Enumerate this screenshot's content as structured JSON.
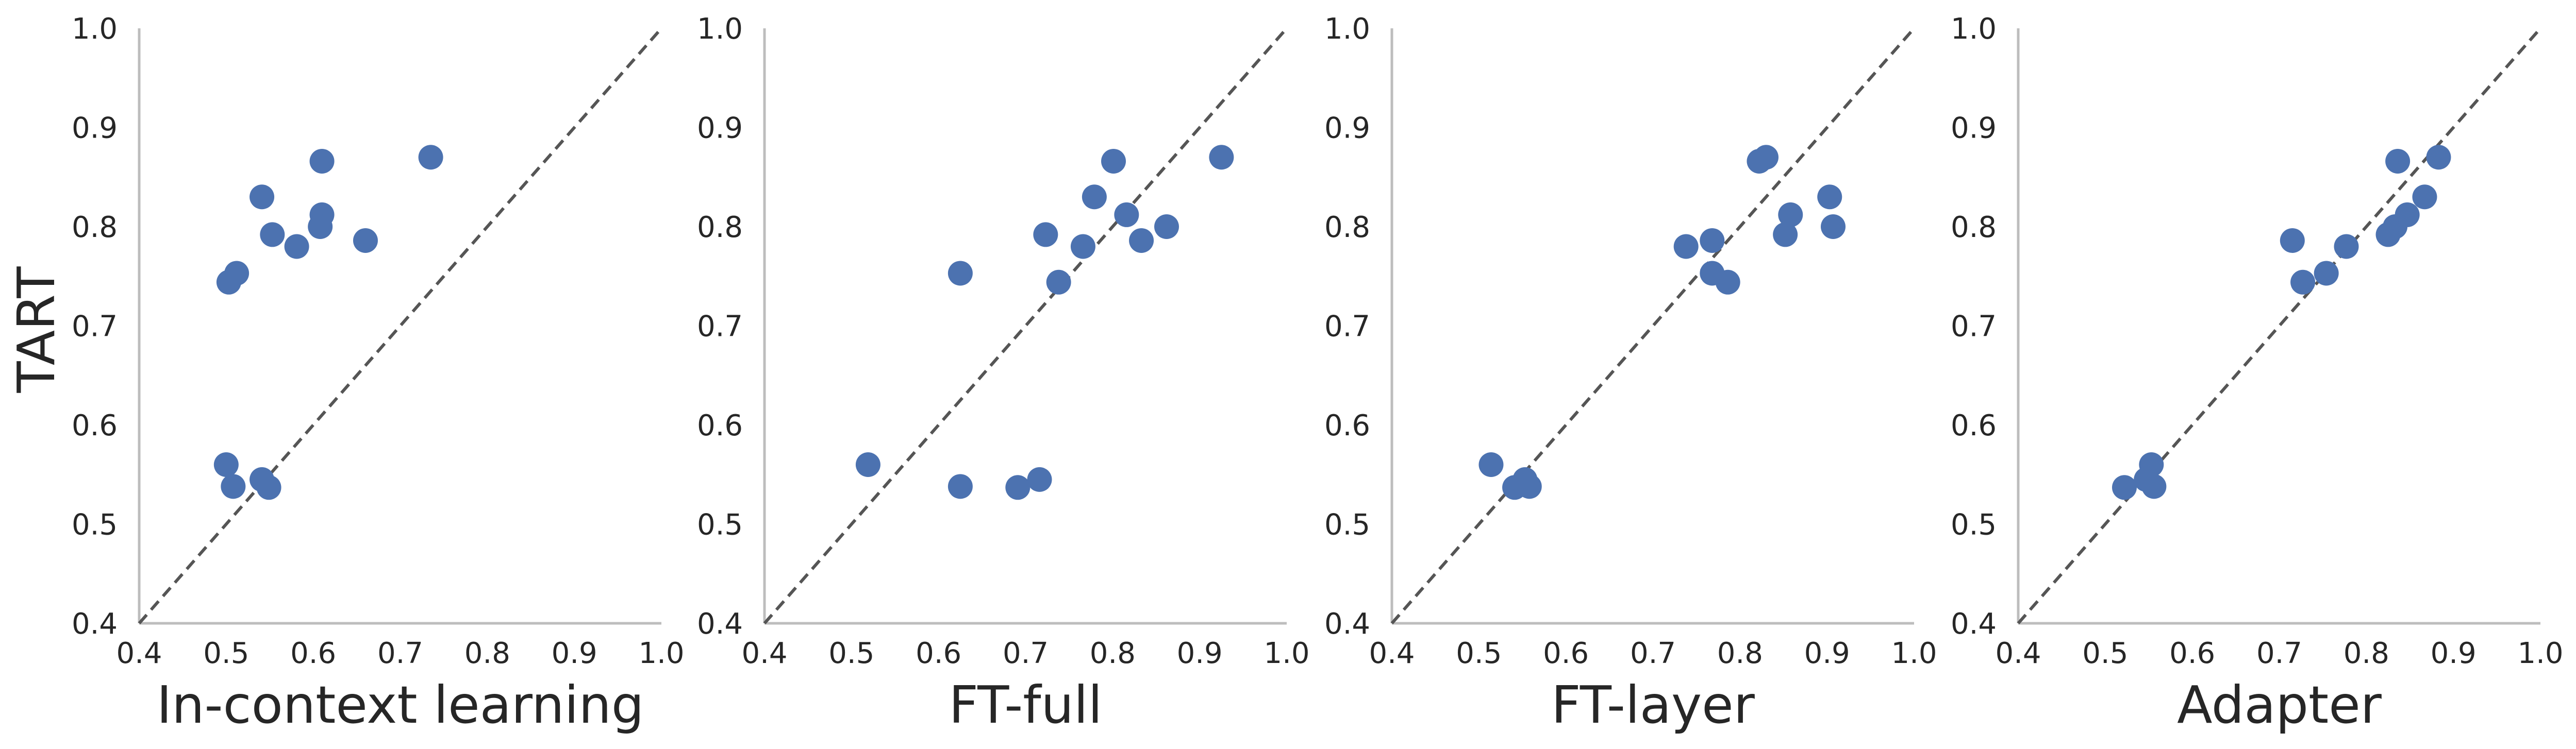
{
  "chart_data": [
    {
      "type": "scatter",
      "xlabel": "In-context learning",
      "ylabel": "TART",
      "xlim": [
        0.4,
        1.0
      ],
      "ylim": [
        0.4,
        1.0
      ],
      "xticks": [
        "0.4",
        "0.5",
        "0.6",
        "0.7",
        "0.8",
        "0.9",
        "1.0"
      ],
      "yticks": [
        "0.4",
        "0.5",
        "0.6",
        "0.7",
        "0.8",
        "0.9",
        "1.0"
      ],
      "reference_line": "y = x (dashed)",
      "grid": false,
      "points": [
        {
          "x": 0.735,
          "y": 0.87
        },
        {
          "x": 0.61,
          "y": 0.866
        },
        {
          "x": 0.541,
          "y": 0.83
        },
        {
          "x": 0.61,
          "y": 0.812
        },
        {
          "x": 0.608,
          "y": 0.8
        },
        {
          "x": 0.553,
          "y": 0.792
        },
        {
          "x": 0.66,
          "y": 0.786
        },
        {
          "x": 0.581,
          "y": 0.78
        },
        {
          "x": 0.512,
          "y": 0.753
        },
        {
          "x": 0.503,
          "y": 0.744
        },
        {
          "x": 0.5,
          "y": 0.56
        },
        {
          "x": 0.541,
          "y": 0.545
        },
        {
          "x": 0.508,
          "y": 0.538
        },
        {
          "x": 0.549,
          "y": 0.537
        }
      ]
    },
    {
      "type": "scatter",
      "xlabel": "FT-full",
      "ylabel": "",
      "xlim": [
        0.4,
        1.0
      ],
      "ylim": [
        0.4,
        1.0
      ],
      "xticks": [
        "0.4",
        "0.5",
        "0.6",
        "0.7",
        "0.8",
        "0.9",
        "1.0"
      ],
      "yticks": [
        "0.4",
        "0.5",
        "0.6",
        "0.7",
        "0.8",
        "0.9",
        "1.0"
      ],
      "reference_line": "y = x (dashed)",
      "grid": false,
      "points": [
        {
          "x": 0.925,
          "y": 0.87
        },
        {
          "x": 0.801,
          "y": 0.866
        },
        {
          "x": 0.779,
          "y": 0.83
        },
        {
          "x": 0.816,
          "y": 0.812
        },
        {
          "x": 0.862,
          "y": 0.8
        },
        {
          "x": 0.723,
          "y": 0.792
        },
        {
          "x": 0.833,
          "y": 0.786
        },
        {
          "x": 0.766,
          "y": 0.78
        },
        {
          "x": 0.625,
          "y": 0.753
        },
        {
          "x": 0.738,
          "y": 0.744
        },
        {
          "x": 0.519,
          "y": 0.56
        },
        {
          "x": 0.716,
          "y": 0.545
        },
        {
          "x": 0.625,
          "y": 0.538
        },
        {
          "x": 0.691,
          "y": 0.537
        }
      ]
    },
    {
      "type": "scatter",
      "xlabel": "FT-layer",
      "ylabel": "",
      "xlim": [
        0.4,
        1.0
      ],
      "ylim": [
        0.4,
        1.0
      ],
      "xticks": [
        "0.4",
        "0.5",
        "0.6",
        "0.7",
        "0.8",
        "0.9",
        "1.0"
      ],
      "yticks": [
        "0.4",
        "0.5",
        "0.6",
        "0.7",
        "0.8",
        "0.9",
        "1.0"
      ],
      "reference_line": "y = x (dashed)",
      "grid": false,
      "points": [
        {
          "x": 0.83,
          "y": 0.87
        },
        {
          "x": 0.822,
          "y": 0.866
        },
        {
          "x": 0.903,
          "y": 0.83
        },
        {
          "x": 0.858,
          "y": 0.812
        },
        {
          "x": 0.907,
          "y": 0.8
        },
        {
          "x": 0.852,
          "y": 0.792
        },
        {
          "x": 0.768,
          "y": 0.786
        },
        {
          "x": 0.738,
          "y": 0.78
        },
        {
          "x": 0.768,
          "y": 0.753
        },
        {
          "x": 0.786,
          "y": 0.744
        },
        {
          "x": 0.514,
          "y": 0.56
        },
        {
          "x": 0.553,
          "y": 0.545
        },
        {
          "x": 0.558,
          "y": 0.538
        },
        {
          "x": 0.541,
          "y": 0.537
        }
      ]
    },
    {
      "type": "scatter",
      "xlabel": "Adapter",
      "ylabel": "",
      "xlim": [
        0.4,
        1.0
      ],
      "ylim": [
        0.4,
        1.0
      ],
      "xticks": [
        "0.4",
        "0.5",
        "0.6",
        "0.7",
        "0.8",
        "0.9",
        "1.0"
      ],
      "yticks": [
        "0.4",
        "0.5",
        "0.6",
        "0.7",
        "0.8",
        "0.9",
        "1.0"
      ],
      "reference_line": "y = x (dashed)",
      "grid": false,
      "points": [
        {
          "x": 0.883,
          "y": 0.87
        },
        {
          "x": 0.836,
          "y": 0.866
        },
        {
          "x": 0.867,
          "y": 0.83
        },
        {
          "x": 0.847,
          "y": 0.812
        },
        {
          "x": 0.833,
          "y": 0.8
        },
        {
          "x": 0.825,
          "y": 0.792
        },
        {
          "x": 0.715,
          "y": 0.786
        },
        {
          "x": 0.777,
          "y": 0.78
        },
        {
          "x": 0.754,
          "y": 0.753
        },
        {
          "x": 0.727,
          "y": 0.744
        },
        {
          "x": 0.553,
          "y": 0.56
        },
        {
          "x": 0.547,
          "y": 0.545
        },
        {
          "x": 0.556,
          "y": 0.538
        },
        {
          "x": 0.522,
          "y": 0.537
        }
      ]
    }
  ],
  "colors": {
    "marker": "#4C72B0",
    "reference_line": "#555555",
    "axis": "#BDBDBD",
    "text": "#262626"
  }
}
